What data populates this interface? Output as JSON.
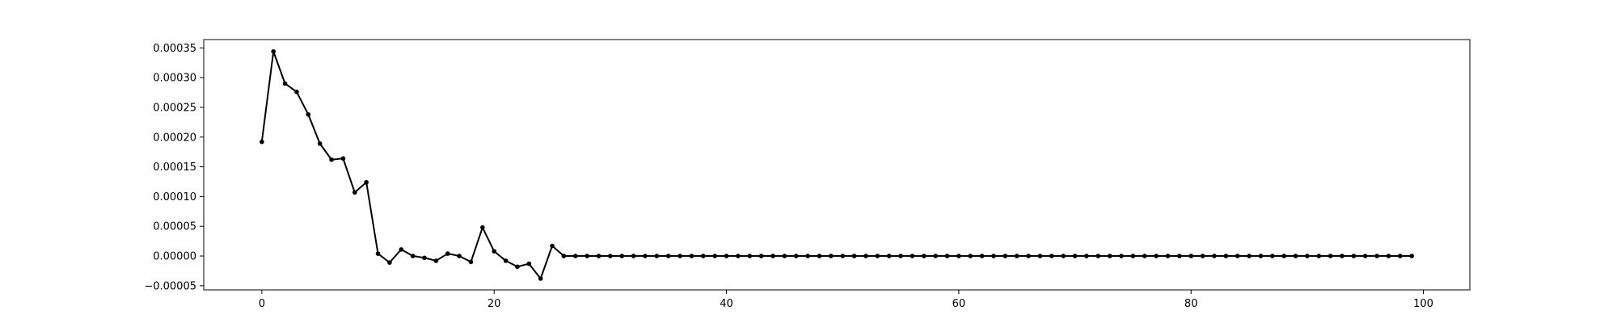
{
  "chart_data": {
    "type": "line",
    "title": "",
    "xlabel": "",
    "ylabel": "",
    "grid": false,
    "legend": "none",
    "xlim": [
      -5,
      104
    ],
    "ylim": [
      -5.7e-05,
      0.000364
    ],
    "x_ticks": [
      0,
      20,
      40,
      60,
      80,
      100
    ],
    "x_tick_labels": [
      "0",
      "20",
      "40",
      "60",
      "80",
      "100"
    ],
    "y_ticks": [
      -5e-05,
      0.0,
      5e-05,
      0.0001,
      0.00015,
      0.0002,
      0.00025,
      0.0003,
      0.00035
    ],
    "y_tick_labels": [
      "−0.00005",
      "0.00000",
      "0.00005",
      "0.00010",
      "0.00015",
      "0.00020",
      "0.00025",
      "0.00030",
      "0.00035"
    ],
    "series": [
      {
        "color": "#000000",
        "marker": "circle",
        "x": [
          0,
          1,
          2,
          3,
          4,
          5,
          6,
          7,
          8,
          9,
          10,
          11,
          12,
          13,
          14,
          15,
          16,
          17,
          18,
          19,
          20,
          21,
          22,
          23,
          24,
          25,
          26,
          27,
          28,
          29,
          30,
          31,
          32,
          33,
          34,
          35,
          36,
          37,
          38,
          39,
          40,
          41,
          42,
          43,
          44,
          45,
          46,
          47,
          48,
          49,
          50,
          51,
          52,
          53,
          54,
          55,
          56,
          57,
          58,
          59,
          60,
          61,
          62,
          63,
          64,
          65,
          66,
          67,
          68,
          69,
          70,
          71,
          72,
          73,
          74,
          75,
          76,
          77,
          78,
          79,
          80,
          81,
          82,
          83,
          84,
          85,
          86,
          87,
          88,
          89,
          90,
          91,
          92,
          93,
          94,
          95,
          96,
          97,
          98,
          99
        ],
        "values": [
          0.000192,
          0.000344,
          0.00029,
          0.000276,
          0.000238,
          0.000189,
          0.000162,
          0.000164,
          0.000107,
          0.000124,
          4e-06,
          -1.1e-05,
          1.1e-05,
          0.0,
          -3e-06,
          -8e-06,
          4e-06,
          0.0,
          -1e-05,
          4.8e-05,
          8e-06,
          -8e-06,
          -1.8e-05,
          -1.3e-05,
          -3.8e-05,
          1.7e-05,
          0,
          0,
          0,
          0,
          0,
          0,
          0,
          0,
          0,
          0,
          0,
          0,
          0,
          0,
          0,
          0,
          0,
          0,
          0,
          0,
          0,
          0,
          0,
          0,
          0,
          0,
          0,
          0,
          0,
          0,
          0,
          0,
          0,
          0,
          0,
          0,
          0,
          0,
          0,
          0,
          0,
          0,
          0,
          0,
          0,
          0,
          0,
          0,
          0,
          0,
          0,
          0,
          0,
          0,
          0,
          0,
          0,
          0,
          0,
          0,
          0,
          0,
          0,
          0,
          0,
          0,
          0,
          0,
          0,
          0,
          0,
          0,
          0,
          0
        ]
      }
    ]
  }
}
